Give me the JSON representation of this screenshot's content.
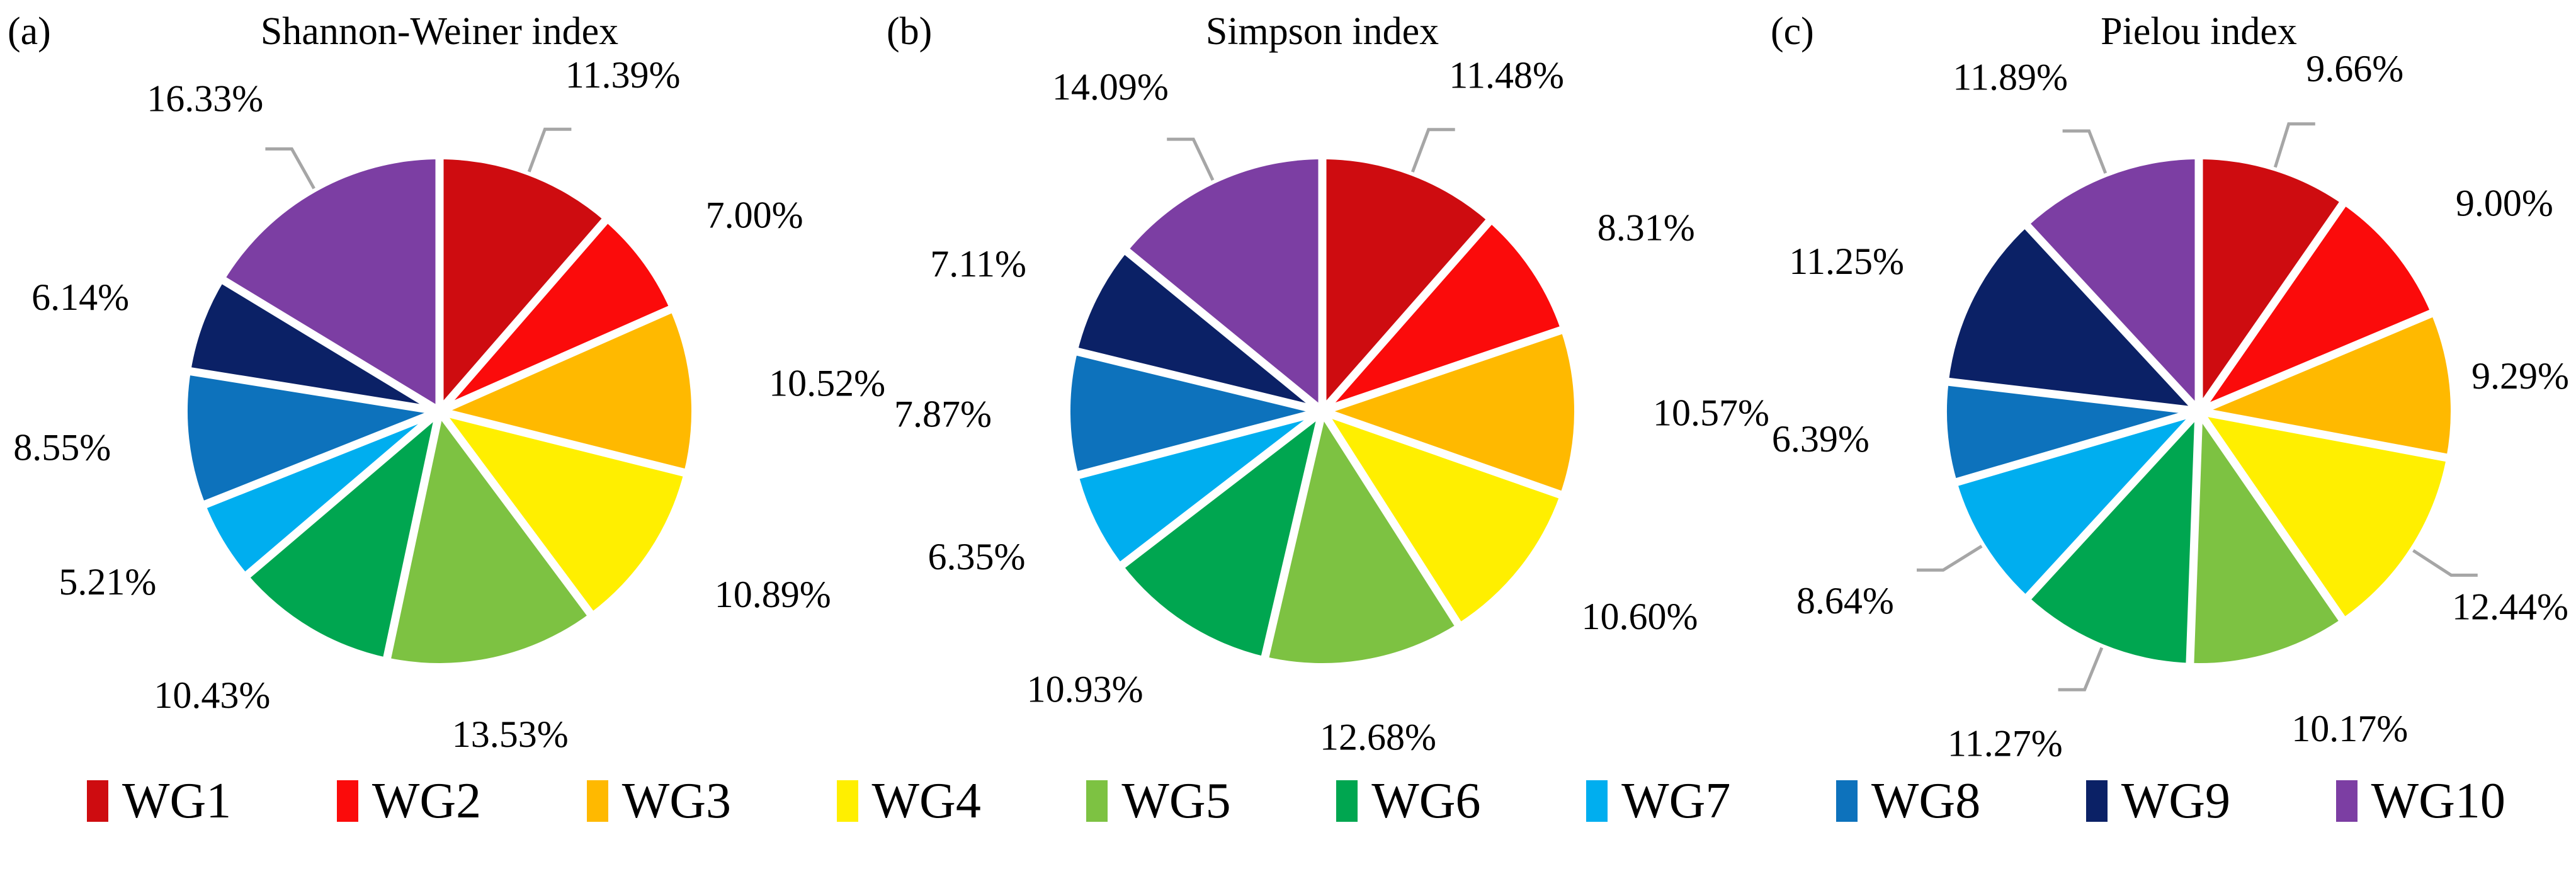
{
  "figure": {
    "panel_letters": [
      "(a)",
      "(b)",
      "(c)"
    ]
  },
  "chart_data": [
    {
      "type": "pie",
      "panel_letter": "(a)",
      "title": "Shannon-Weiner index",
      "categories": [
        "WG1",
        "WG2",
        "WG3",
        "WG4",
        "WG5",
        "WG6",
        "WG7",
        "WG8",
        "WG9",
        "WG10"
      ],
      "values": [
        11.39,
        7.0,
        10.52,
        10.89,
        13.53,
        10.43,
        5.21,
        8.55,
        6.14,
        16.33
      ],
      "labels": [
        "11.39%",
        "7.00%",
        "10.52%",
        "10.89%",
        "13.53%",
        "10.43%",
        "5.21%",
        "8.55%",
        "6.14%",
        "16.33%"
      ],
      "leader_lines": [
        true,
        false,
        false,
        false,
        false,
        false,
        false,
        false,
        false,
        true
      ],
      "start_angle_deg": 0,
      "direction": "clockwise",
      "legend_position": "bottom"
    },
    {
      "type": "pie",
      "panel_letter": "(b)",
      "title": "Simpson index",
      "categories": [
        "WG1",
        "WG2",
        "WG3",
        "WG4",
        "WG5",
        "WG6",
        "WG7",
        "WG8",
        "WG9",
        "WG10"
      ],
      "values": [
        11.48,
        8.31,
        10.57,
        10.6,
        12.68,
        10.93,
        6.35,
        7.87,
        7.11,
        14.09
      ],
      "labels": [
        "11.48%",
        "8.31%",
        "10.57%",
        "10.60%",
        "12.68%",
        "10.93%",
        "6.35%",
        "7.87%",
        "7.11%",
        "14.09%"
      ],
      "leader_lines": [
        true,
        false,
        false,
        false,
        false,
        false,
        false,
        false,
        false,
        true
      ],
      "start_angle_deg": 0,
      "direction": "clockwise",
      "legend_position": "bottom"
    },
    {
      "type": "pie",
      "panel_letter": "(c)",
      "title": "Pielou index",
      "categories": [
        "WG1",
        "WG2",
        "WG3",
        "WG4",
        "WG5",
        "WG6",
        "WG7",
        "WG8",
        "WG9",
        "WG10"
      ],
      "values": [
        9.66,
        9.0,
        9.29,
        12.44,
        10.17,
        11.27,
        8.64,
        6.39,
        11.25,
        11.89
      ],
      "labels": [
        "9.66%",
        "9.00%",
        "9.29%",
        "12.44%",
        "10.17%",
        "11.27%",
        "8.64%",
        "6.39%",
        "11.25%",
        "11.89%"
      ],
      "leader_lines": [
        true,
        false,
        false,
        true,
        false,
        true,
        true,
        false,
        false,
        true
      ],
      "start_angle_deg": 0,
      "direction": "clockwise",
      "legend_position": "bottom"
    }
  ],
  "palette": {
    "slice_colors": [
      "#CE0C10",
      "#FB0B0B",
      "#FFB900",
      "#FFEF00",
      "#7DC242",
      "#00A650",
      "#00AEEF",
      "#0D72BC",
      "#0B2166",
      "#7C3EA3"
    ],
    "slice_gap_color": "#FFFFFF",
    "leader_line_color": "#A6A6A6",
    "text_color": "#000000"
  },
  "legend": {
    "position": "bottom",
    "items": [
      {
        "label": "WG1",
        "color": "#CE0C10"
      },
      {
        "label": "WG2",
        "color": "#FB0B0B"
      },
      {
        "label": "WG3",
        "color": "#FFB900"
      },
      {
        "label": "WG4",
        "color": "#FFEF00"
      },
      {
        "label": "WG5",
        "color": "#7DC242"
      },
      {
        "label": "WG6",
        "color": "#00A650"
      },
      {
        "label": "WG7",
        "color": "#00AEEF"
      },
      {
        "label": "WG8",
        "color": "#0D72BC"
      },
      {
        "label": "WG9",
        "color": "#0B2166"
      },
      {
        "label": "WG10",
        "color": "#7C3EA3"
      }
    ]
  }
}
